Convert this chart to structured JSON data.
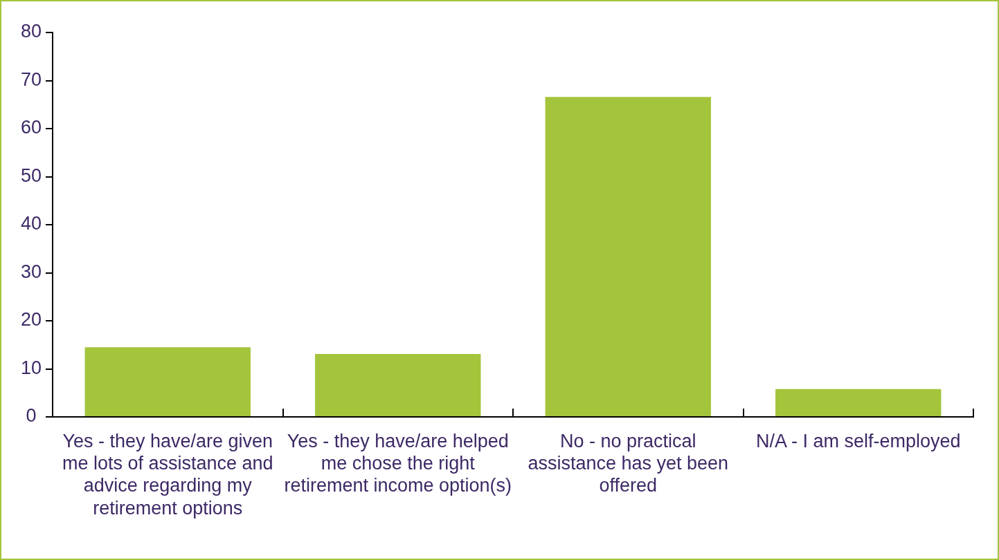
{
  "chart_data": {
    "type": "bar",
    "categories": [
      "Yes - they have/are given me lots of assistance and advice regarding my retirement options",
      "Yes - they have/are helped me chose the right retirement income option(s)",
      "No - no practical assistance has yet been offered",
      "N/A - I am self-employed"
    ],
    "values": [
      14.5,
      13.1,
      66.6,
      5.8
    ],
    "color": "#a4c43c",
    "ylim": [
      0,
      80
    ],
    "yticks": [
      0,
      10,
      20,
      30,
      40,
      50,
      60,
      70,
      80
    ],
    "grid": false,
    "legend": false
  }
}
